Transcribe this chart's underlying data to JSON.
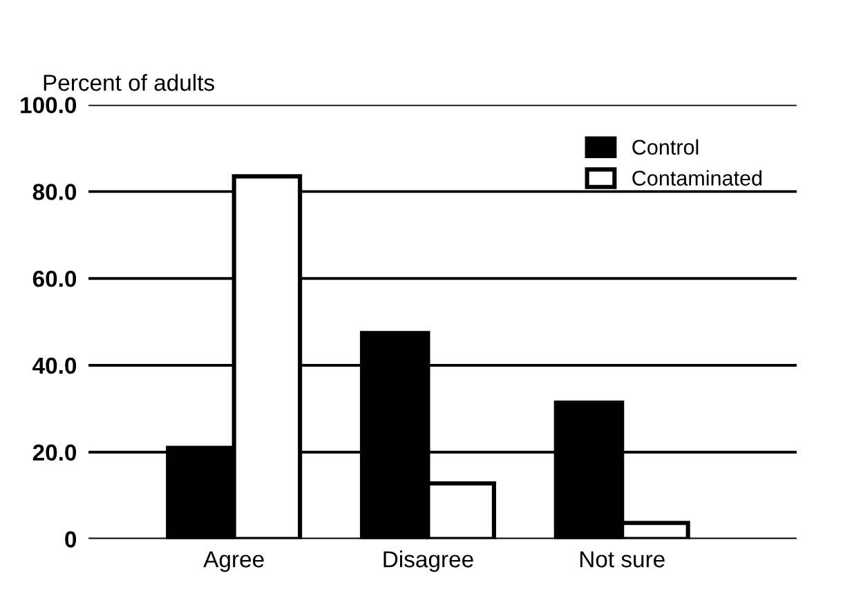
{
  "chart_data": {
    "type": "bar",
    "ylabel": "Percent of adults",
    "categories": [
      "Agree",
      "Disagree",
      "Not sure"
    ],
    "series": [
      {
        "name": "Control",
        "color": "#000000",
        "values": [
          21,
          47.4,
          31.4
        ]
      },
      {
        "name": "Contaminated",
        "color": "#ffffff",
        "values": [
          83.5,
          12.8,
          3.7
        ]
      }
    ],
    "ylim": [
      0,
      100
    ],
    "yticks": [
      {
        "value": 0,
        "label": "0"
      },
      {
        "value": 20,
        "label": "20.0"
      },
      {
        "value": 40,
        "label": "40.0"
      },
      {
        "value": 60,
        "label": "60.0"
      },
      {
        "value": 80,
        "label": "80.0"
      },
      {
        "value": 100,
        "label": "100.0"
      }
    ],
    "grid": "y",
    "legend": "top right"
  }
}
